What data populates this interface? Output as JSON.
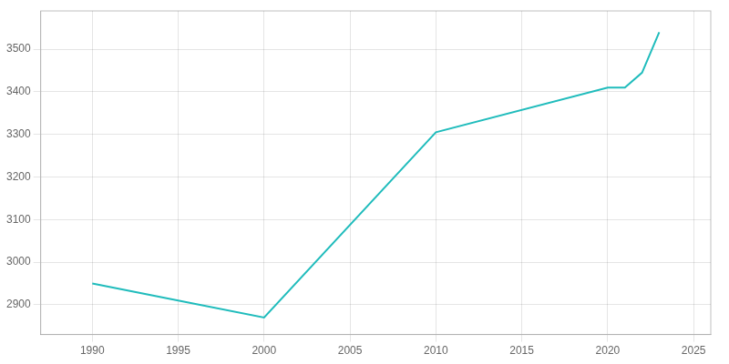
{
  "chart_data": {
    "type": "line",
    "x": [
      1990,
      1995,
      2000,
      2010,
      2020,
      2021,
      2022,
      2023
    ],
    "values": [
      2950,
      2910,
      2870,
      3305,
      3410,
      3410,
      3445,
      3540
    ],
    "color": "#20BCBC",
    "xlim": [
      1987,
      2026
    ],
    "ylim": [
      2830,
      3590
    ],
    "xticks": [
      1990,
      1995,
      2000,
      2005,
      2010,
      2015,
      2020,
      2025
    ],
    "yticks": [
      2900,
      3000,
      3100,
      3200,
      3300,
      3400,
      3500
    ],
    "grid": true
  }
}
